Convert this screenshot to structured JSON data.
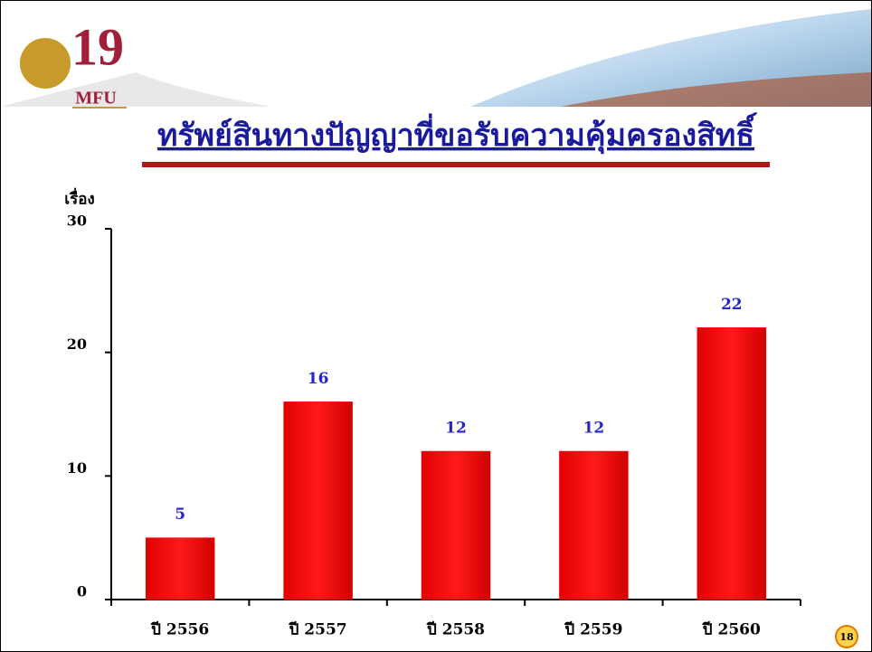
{
  "logo": {
    "number": "19",
    "name": "MFU"
  },
  "page_number": "18",
  "chart_data": {
    "type": "bar",
    "title": "ทรัพย์สินทางปัญญาที่ขอรับความคุ้มครองสิทธิ์",
    "y_label": "เรื่อง",
    "categories": [
      "ปี 2556",
      "ปี 2557",
      "ปี 2558",
      "ปี 2559",
      "ปี 2560"
    ],
    "values": [
      5,
      16,
      12,
      12,
      22
    ],
    "color": "#ff0000",
    "label_color": "#2525d0",
    "ylim": [
      0,
      30
    ],
    "yticks": [
      0,
      10,
      20,
      30
    ],
    "grid": false
  }
}
